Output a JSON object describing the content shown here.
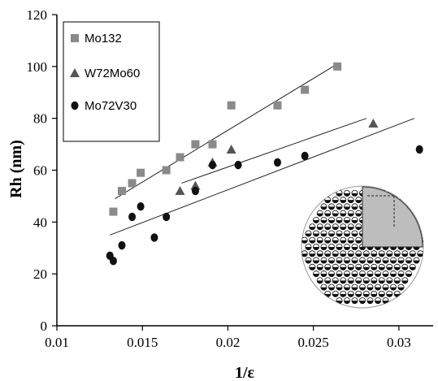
{
  "chart_data": {
    "type": "scatter",
    "xlabel": "1/ε",
    "ylabel": "Rh (nm)",
    "xlim": [
      0.01,
      0.032
    ],
    "ylim": [
      0,
      120
    ],
    "x_ticks": [
      0.01,
      0.015,
      0.02,
      0.025,
      0.03
    ],
    "x_tick_labels": [
      "0.01",
      "0.015",
      "0.02",
      "0.025",
      "0.03"
    ],
    "y_ticks": [
      0,
      20,
      40,
      60,
      80,
      100,
      120
    ],
    "y_tick_labels": [
      "0",
      "20",
      "40",
      "60",
      "80",
      "100",
      "120"
    ],
    "grid": false,
    "legend_position": "top-left",
    "series": [
      {
        "name": "Mo132",
        "marker": "square",
        "color": "#8a8a8a",
        "points": [
          [
            0.0133,
            44
          ],
          [
            0.0138,
            52
          ],
          [
            0.0144,
            55
          ],
          [
            0.0149,
            59
          ],
          [
            0.0164,
            60
          ],
          [
            0.0172,
            65
          ],
          [
            0.0181,
            70
          ],
          [
            0.0191,
            70
          ],
          [
            0.0202,
            85
          ],
          [
            0.0229,
            85
          ],
          [
            0.0245,
            91
          ],
          [
            0.0264,
            100
          ]
        ],
        "fit_line": [
          [
            0.0134,
            49
          ],
          [
            0.0264,
            101
          ]
        ]
      },
      {
        "name": "W72Mo60",
        "marker": "triangle",
        "color": "#555555",
        "points": [
          [
            0.0172,
            52
          ],
          [
            0.0181,
            54
          ],
          [
            0.0191,
            63
          ],
          [
            0.0202,
            68
          ],
          [
            0.0285,
            78
          ]
        ],
        "fit_line": [
          [
            0.0173,
            55
          ],
          [
            0.0281,
            80
          ]
        ]
      },
      {
        "name": "Mo72V30",
        "marker": "circle",
        "color": "#111111",
        "points": [
          [
            0.0131,
            27
          ],
          [
            0.0133,
            25
          ],
          [
            0.0138,
            31
          ],
          [
            0.0144,
            42
          ],
          [
            0.0149,
            46
          ],
          [
            0.0157,
            34
          ],
          [
            0.0164,
            42
          ],
          [
            0.0181,
            52
          ],
          [
            0.0191,
            62
          ],
          [
            0.0206,
            62
          ],
          [
            0.0229,
            63
          ],
          [
            0.0245,
            65.5
          ],
          [
            0.0312,
            68
          ]
        ],
        "fit_line": [
          [
            0.0131,
            35
          ],
          [
            0.0309,
            80
          ]
        ]
      }
    ]
  }
}
